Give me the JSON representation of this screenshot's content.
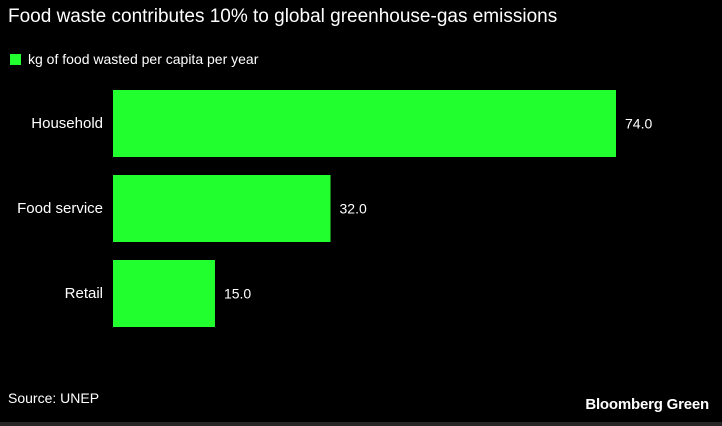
{
  "title": "Food waste contributes 10% to global greenhouse-gas emissions",
  "source": "Source: UNEP",
  "brand": "Bloomberg Green",
  "colors": {
    "background": "#000000",
    "bar": "#22ff2e",
    "text": "#ffffff"
  },
  "chart_data": {
    "type": "bar",
    "orientation": "horizontal",
    "categories": [
      "Household",
      "Food service",
      "Retail"
    ],
    "series": [
      {
        "name": "kg of food wasted per capita per year",
        "values": [
          74.0,
          32.0,
          15.0
        ],
        "value_labels": [
          "74.0",
          "32.0",
          "15.0"
        ]
      }
    ],
    "xlim": [
      0,
      74
    ],
    "grid": false,
    "legend_position": "top-left"
  }
}
